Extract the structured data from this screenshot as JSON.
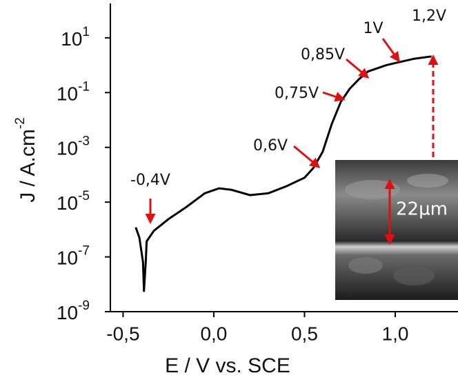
{
  "chart_data": {
    "type": "line",
    "xlabel": "E / V vs. SCE",
    "ylabel": "J / A.cm",
    "ylabel_sup": "-2",
    "ylog": true,
    "color": "#000000",
    "x": [
      -0.43,
      -0.41,
      -0.39,
      -0.385,
      -0.375,
      -0.37,
      -0.33,
      -0.25,
      -0.15,
      -0.05,
      0.03,
      0.1,
      0.2,
      0.3,
      0.4,
      0.5,
      0.55,
      0.6,
      0.65,
      0.7,
      0.75,
      0.8,
      0.85,
      0.95,
      1.0,
      1.1,
      1.2
    ],
    "values": [
      1.2e-06,
      5e-07,
      6.5e-08,
      5.7e-09,
      6.5e-08,
      3.7e-07,
      9e-07,
      2.4e-06,
      6.7e-06,
      2.1e-05,
      3.2e-05,
      2.8e-05,
      1.8e-05,
      2.1e-05,
      3.8e-05,
      7.8e-05,
      0.00018,
      0.00069,
      0.007,
      0.046,
      0.14,
      0.31,
      0.59,
      1.0,
      1.2,
      1.7,
      2.1
    ],
    "xlim": [
      -0.57,
      1.346
    ],
    "ylim": [
      1e-09,
      180
    ],
    "xticks": [
      {
        "value": -0.5,
        "label": "-0,5"
      },
      {
        "value": 0,
        "label": "0,0"
      },
      {
        "value": 0.5,
        "label": "0,5"
      },
      {
        "value": 1,
        "label": "1,0"
      }
    ],
    "yticks": [
      {
        "value": 10,
        "label": "10",
        "sup": "1"
      },
      {
        "value": 0.1,
        "label": "10",
        "sup": "-1"
      },
      {
        "value": 0.001,
        "label": "10",
        "sup": "-3"
      },
      {
        "value": 1e-05,
        "label": "10",
        "sup": "-5"
      },
      {
        "value": 1e-07,
        "label": "10",
        "sup": "-7"
      },
      {
        "value": 1e-09,
        "label": "10",
        "sup": "-9"
      }
    ],
    "annotations": [
      "-0,4V",
      "0,6V",
      "0,75V",
      "0,85V",
      "1V",
      "1,2V"
    ],
    "inset_label": "22µm"
  }
}
